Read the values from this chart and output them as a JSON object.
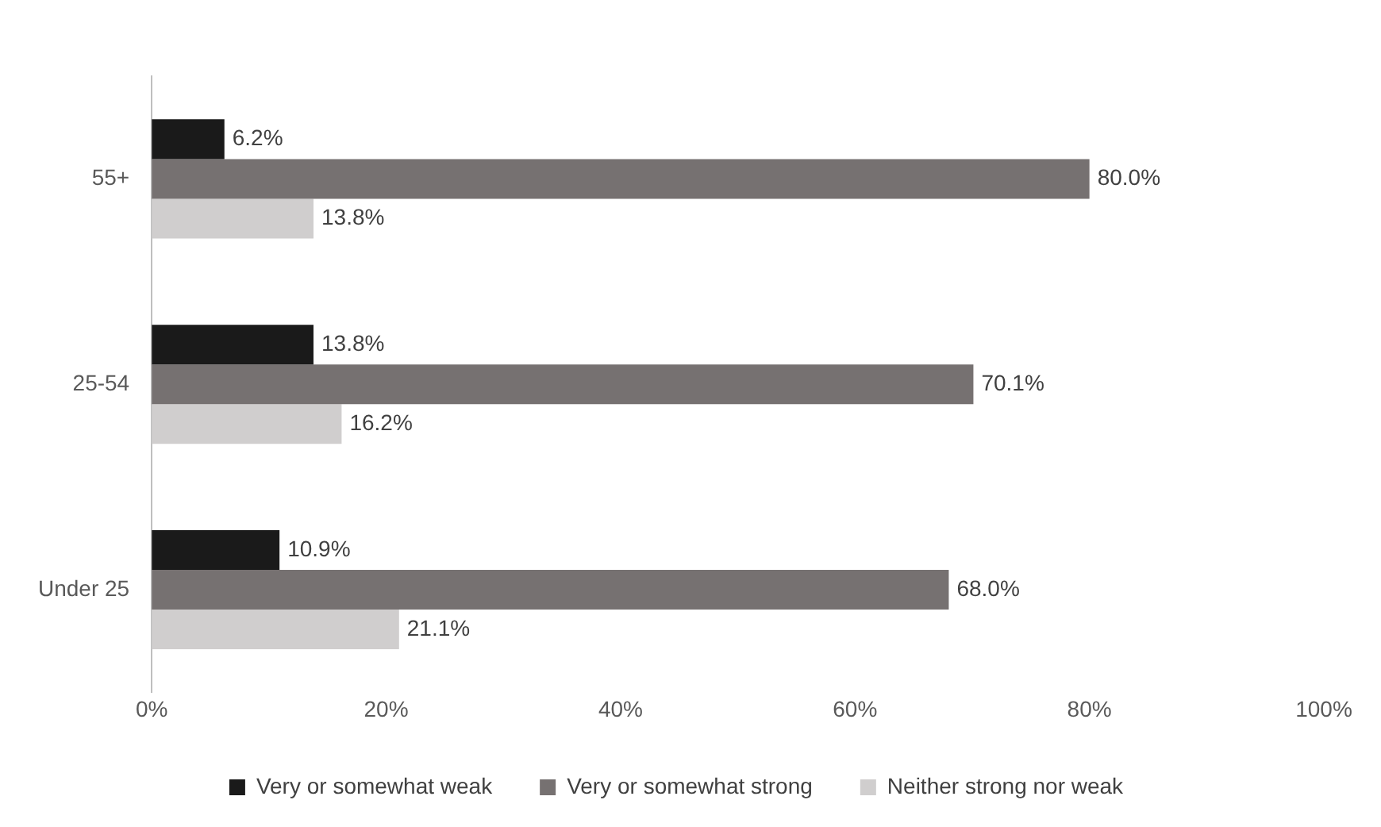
{
  "chart_data": {
    "type": "bar",
    "orientation": "horizontal",
    "categories": [
      "55+",
      "25-54",
      "Under 25"
    ],
    "series": [
      {
        "name": "Very or somewhat weak",
        "color": "#1a1a1a",
        "values": [
          6.2,
          13.8,
          10.9
        ],
        "value_labels": [
          "6.2%",
          "13.8%",
          "10.9%"
        ]
      },
      {
        "name": "Very or somewhat strong",
        "color": "#767171",
        "values": [
          80.0,
          70.1,
          68.0
        ],
        "value_labels": [
          "80.0%",
          "70.1%",
          "68.0%"
        ]
      },
      {
        "name": "Neither strong nor weak",
        "color": "#d0cece",
        "values": [
          13.8,
          16.2,
          21.1
        ],
        "value_labels": [
          "13.8%",
          "16.2%",
          "21.1%"
        ]
      }
    ],
    "xlim": [
      0,
      100
    ],
    "xticks": [
      {
        "value": 0,
        "label": "0%"
      },
      {
        "value": 20,
        "label": "20%"
      },
      {
        "value": 40,
        "label": "40%"
      },
      {
        "value": 60,
        "label": "60%"
      },
      {
        "value": 80,
        "label": "80%"
      },
      {
        "value": 100,
        "label": "100%"
      }
    ],
    "grid": false,
    "legend": "bottom"
  }
}
